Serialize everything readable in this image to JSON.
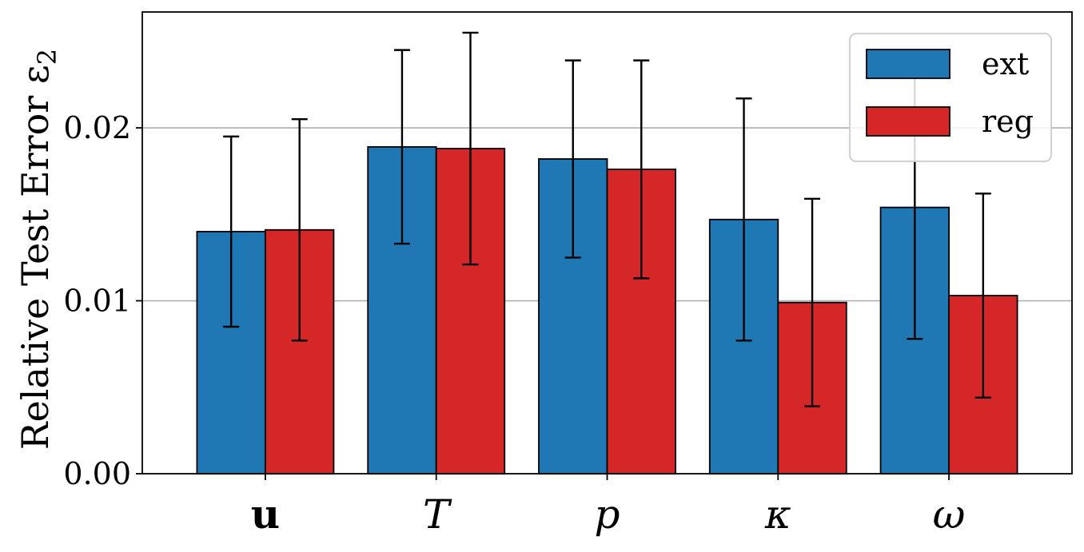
{
  "chart_data": {
    "type": "bar",
    "ylabel": "Relative Test Error ε",
    "ylabel_subscript": "2",
    "categories": [
      "u",
      "T",
      "p",
      "κ",
      "ω"
    ],
    "category_styles": [
      "bold",
      "italic",
      "italic",
      "italic",
      "italic"
    ],
    "yticks": [
      0.0,
      0.01,
      0.02
    ],
    "ytick_labels": [
      "0.00",
      "0.01",
      "0.02"
    ],
    "ylim": [
      0,
      0.0267
    ],
    "grid": "y-major",
    "legend_position": "top-right",
    "series": [
      {
        "name": "ext",
        "color": "#1f77b4",
        "values": [
          0.014,
          0.0189,
          0.0182,
          0.0147,
          0.0154
        ],
        "errors": [
          0.0055,
          0.0056,
          0.0057,
          0.007,
          0.0076
        ]
      },
      {
        "name": "reg",
        "color": "#d62728",
        "values": [
          0.0141,
          0.0188,
          0.0176,
          0.0099,
          0.0103
        ],
        "errors": [
          0.0064,
          0.0067,
          0.0063,
          0.006,
          0.0059
        ]
      }
    ]
  }
}
